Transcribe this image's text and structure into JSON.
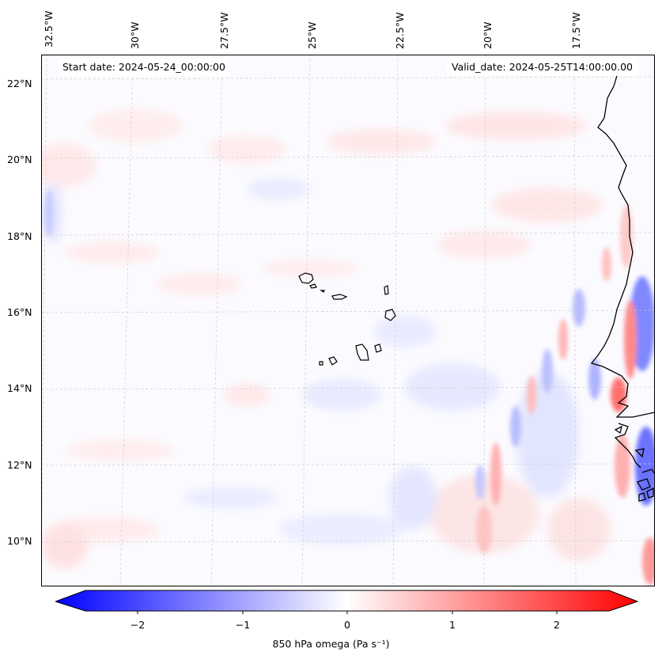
{
  "header": {
    "start_date": "Start date: 2024-05-24_00:00:00",
    "valid_date": "Valid_date: 2024-05-25T14:00:00.00"
  },
  "map": {
    "extent_lon": [
      -32.8,
      -15.5
    ],
    "extent_lat": [
      8.9,
      22.8
    ],
    "lon_ticks": [
      "32.5°W",
      "30°W",
      "27.5°W",
      "25°W",
      "22.5°W",
      "20°W",
      "17.5°W"
    ],
    "lat_ticks": [
      "22°N",
      "20°N",
      "18°N",
      "16°N",
      "14°N",
      "12°N",
      "10°N"
    ],
    "gridlines": true,
    "land_colors": {
      "coast": "#000000",
      "grid": "#cccccc"
    }
  },
  "colorbar": {
    "label": "850 hPa omega (Pa s⁻¹)",
    "ticks": [
      "−2",
      "−1",
      "0",
      "1",
      "2"
    ],
    "tick_values": [
      -2,
      -1,
      0,
      1,
      2
    ],
    "range": [
      -2.6,
      2.6
    ],
    "colormap": "bwr",
    "colors": {
      "negative": "#0000ff",
      "zero": "#ffffff",
      "positive": "#ff0000"
    }
  }
}
